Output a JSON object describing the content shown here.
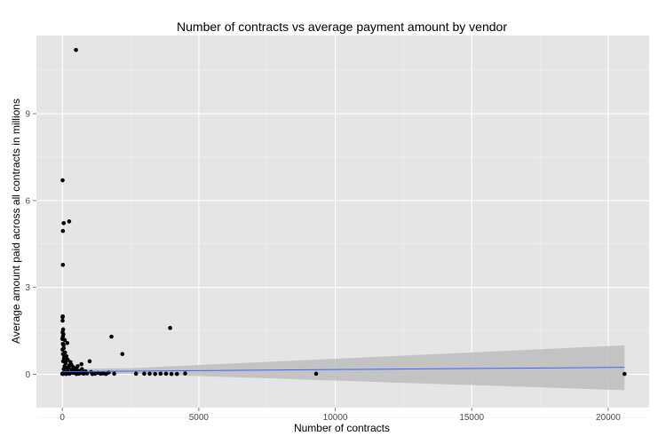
{
  "chart_data": {
    "type": "scatter",
    "title": "Number of contracts vs average payment amount by vendor",
    "xlabel": "Number of contracts",
    "ylabel": "Average amount paid across all contracts in millions",
    "xlim": [
      -950,
      21500
    ],
    "ylim": [
      -1.15,
      11.7
    ],
    "x_ticks": [
      0,
      5000,
      10000,
      15000,
      20000
    ],
    "x_tick_labels": [
      "0",
      "5000",
      "10000",
      "15000",
      "20000"
    ],
    "y_ticks": [
      0,
      3,
      6,
      9
    ],
    "y_tick_labels": [
      "0",
      "3",
      "6",
      "9"
    ],
    "grid": true,
    "background": "#e5e5e5",
    "grid_color": "#ffffff",
    "point_color": "#000000",
    "trend_color": "#3366ff",
    "band_color": "#bdbdbd",
    "series": [
      {
        "points": [
          [
            500,
            11.2
          ],
          [
            10,
            6.7
          ],
          [
            250,
            5.28
          ],
          [
            50,
            5.22
          ],
          [
            20,
            4.95
          ],
          [
            20,
            3.78
          ],
          [
            10,
            1.98
          ],
          [
            10,
            1.85
          ],
          [
            30,
            1.55
          ],
          [
            10,
            1.45
          ],
          [
            40,
            1.38
          ],
          [
            20,
            1.3
          ],
          [
            0,
            1.22
          ],
          [
            90,
            1.18
          ],
          [
            180,
            1.08
          ],
          [
            20,
            1.05
          ],
          [
            50,
            0.9
          ],
          [
            10,
            0.85
          ],
          [
            100,
            0.75
          ],
          [
            150,
            0.62
          ],
          [
            60,
            0.55
          ],
          [
            200,
            0.5
          ],
          [
            30,
            0.45
          ],
          [
            300,
            0.42
          ],
          [
            120,
            0.38
          ],
          [
            700,
            0.35
          ],
          [
            250,
            0.3
          ],
          [
            80,
            0.28
          ],
          [
            400,
            0.25
          ],
          [
            150,
            0.22
          ],
          [
            500,
            0.2
          ],
          [
            50,
            0.18
          ],
          [
            350,
            0.15
          ],
          [
            600,
            0.12
          ],
          [
            200,
            0.1
          ],
          [
            800,
            0.08
          ],
          [
            100,
            0.06
          ],
          [
            450,
            0.05
          ],
          [
            30,
            0.04
          ],
          [
            900,
            0.03
          ],
          [
            600,
            0.02
          ],
          [
            1200,
            0.02
          ],
          [
            1000,
            0.45
          ],
          [
            1500,
            0.03
          ],
          [
            1700,
            0.06
          ],
          [
            1900,
            0.02
          ],
          [
            1800,
            1.3
          ],
          [
            2200,
            0.7
          ],
          [
            2700,
            0.02
          ],
          [
            3000,
            0.02
          ],
          [
            3200,
            0.02
          ],
          [
            3400,
            0.01
          ],
          [
            3600,
            0.02
          ],
          [
            3800,
            0.02
          ],
          [
            3950,
            1.6
          ],
          [
            4000,
            0.01
          ],
          [
            4200,
            0.01
          ],
          [
            4500,
            0.03
          ],
          [
            9300,
            0.02
          ],
          [
            20600,
            0.01
          ],
          [
            0,
            0.02
          ],
          [
            20,
            0.01
          ],
          [
            60,
            0.03
          ],
          [
            140,
            0.01
          ],
          [
            260,
            0.02
          ],
          [
            380,
            0.05
          ],
          [
            520,
            0.01
          ],
          [
            660,
            0.04
          ],
          [
            780,
            0.02
          ],
          [
            1100,
            0.01
          ],
          [
            1300,
            0.05
          ],
          [
            1400,
            0.02
          ],
          [
            1600,
            0.01
          ],
          [
            720,
            0.18
          ],
          [
            330,
            0.33
          ],
          [
            480,
            0.12
          ],
          [
            850,
            0.1
          ],
          [
            1050,
            0.08
          ],
          [
            75,
            0.62
          ],
          [
            160,
            0.48
          ],
          [
            240,
            0.22
          ],
          [
            420,
            0.15
          ],
          [
            560,
            0.28
          ],
          [
            15,
            2.0
          ],
          [
            25,
            0.7
          ],
          [
            45,
            1.0
          ]
        ]
      }
    ],
    "trend_line": {
      "x": [
        0,
        20600
      ],
      "y": [
        0.09,
        0.24
      ]
    },
    "confidence_band": {
      "x": [
        0,
        2500,
        20600
      ],
      "lower": [
        0.0,
        0.02,
        -0.55
      ],
      "upper": [
        0.18,
        0.21,
        1.0
      ]
    }
  }
}
